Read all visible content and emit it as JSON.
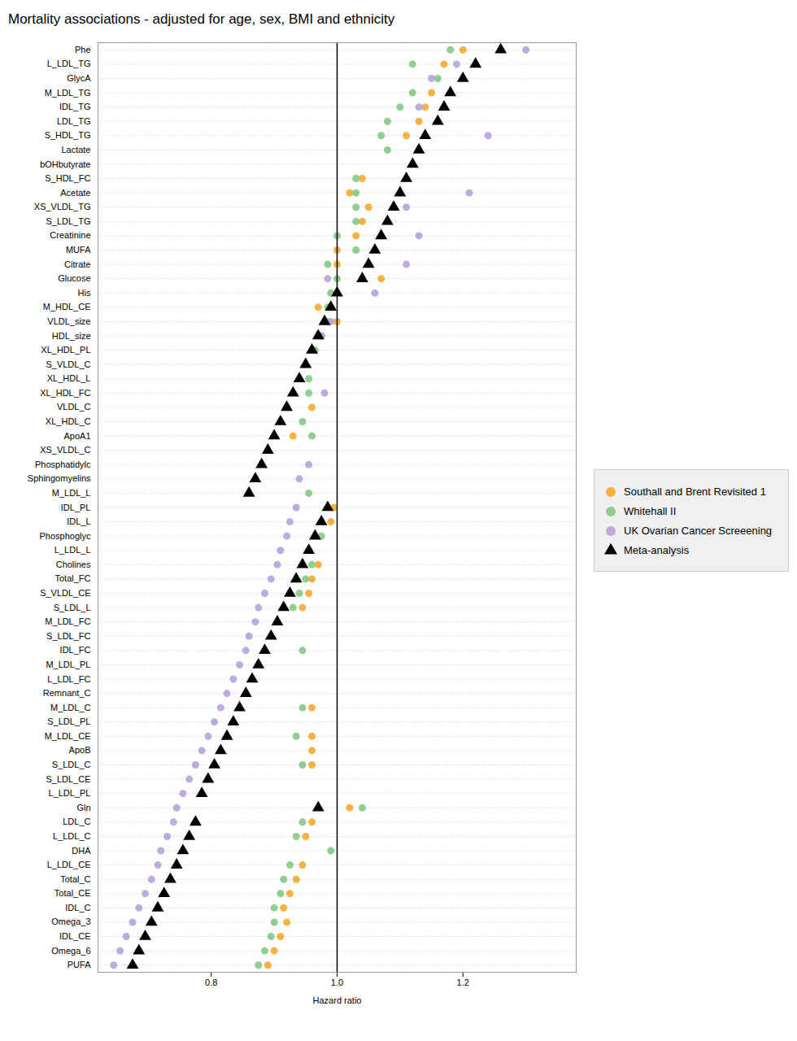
{
  "chart_data": {
    "type": "scatter",
    "orientation": "horizontal",
    "title": "Mortality associations - adjusted for age, sex, BMI and ethnicity",
    "x_label": "Hazard ratio",
    "categories": [
      "Phe",
      "L_LDL_TG",
      "GlycA",
      "M_LDL_TG",
      "IDL_TG",
      "LDL_TG",
      "S_HDL_TG",
      "Lactate",
      "bOHbutyrate",
      "S_HDL_FC",
      "Acetate",
      "XS_VLDL_TG",
      "S_LDL_TG",
      "Creatinine",
      "MUFA",
      "Citrate",
      "Glucose",
      "His",
      "M_HDL_CE",
      "VLDL_size",
      "HDL_size",
      "XL_HDL_PL",
      "S_VLDL_C",
      "XL_HDL_L",
      "XL_HDL_FC",
      "VLDL_C",
      "XL_HDL_C",
      "ApoA1",
      "XS_VLDL_C",
      "Phosphatidylc",
      "Sphingomyelins",
      "M_LDL_L",
      "IDL_PL",
      "IDL_L",
      "Phosphoglyc",
      "L_LDL_L",
      "Cholines",
      "Total_FC",
      "S_VLDL_CE",
      "S_LDL_L",
      "M_LDL_FC",
      "S_LDL_FC",
      "IDL_FC",
      "M_LDL_PL",
      "L_LDL_FC",
      "Remnant_C",
      "M_LDL_C",
      "S_LDL_PL",
      "M_LDL_CE",
      "ApoB",
      "S_LDL_C",
      "S_LDL_CE",
      "L_LDL_PL",
      "Gln",
      "LDL_C",
      "L_LDL_C",
      "DHA",
      "L_LDL_CE",
      "Total_C",
      "Total_CE",
      "IDL_C",
      "Omega_3",
      "IDL_CE",
      "Omega_6",
      "PUFA"
    ],
    "series": [
      {
        "name": "Southall and Brent Revisited 1",
        "color": "#F5A623",
        "marker": "circle",
        "values": [
          1.2,
          1.17,
          null,
          1.15,
          1.14,
          1.13,
          1.11,
          null,
          null,
          1.04,
          1.02,
          1.05,
          1.04,
          1.03,
          1.0,
          1.0,
          1.07,
          null,
          0.97,
          1.0,
          null,
          null,
          null,
          null,
          null,
          0.96,
          null,
          0.93,
          null,
          null,
          null,
          null,
          0.995,
          0.99,
          null,
          null,
          0.97,
          0.96,
          0.955,
          0.945,
          null,
          null,
          null,
          null,
          null,
          null,
          0.96,
          null,
          0.96,
          0.96,
          0.96,
          null,
          null,
          1.02,
          0.96,
          0.95,
          null,
          0.945,
          0.935,
          0.925,
          0.915,
          0.92,
          0.91,
          0.9,
          0.89
        ]
      },
      {
        "name": "Whitehall II",
        "color": "#7DC67E",
        "marker": "circle",
        "values": [
          1.18,
          1.12,
          1.16,
          1.12,
          1.1,
          1.08,
          1.07,
          1.08,
          null,
          1.03,
          1.03,
          1.03,
          1.03,
          1.0,
          1.03,
          0.985,
          1.0,
          0.99,
          0.985,
          0.985,
          0.975,
          0.965,
          null,
          0.955,
          0.955,
          null,
          0.945,
          0.96,
          null,
          null,
          null,
          0.955,
          null,
          null,
          0.975,
          0.955,
          0.96,
          0.95,
          0.94,
          0.93,
          null,
          null,
          0.945,
          null,
          null,
          null,
          0.945,
          null,
          0.935,
          null,
          0.945,
          null,
          null,
          1.04,
          0.945,
          0.935,
          0.99,
          0.925,
          0.915,
          0.91,
          0.9,
          0.9,
          0.895,
          0.885,
          0.875
        ]
      },
      {
        "name": "UK Ovarian Cancer Screeening",
        "color": "#B39DDB",
        "marker": "circle",
        "values": [
          1.3,
          1.19,
          1.15,
          null,
          1.13,
          null,
          1.24,
          null,
          null,
          null,
          1.21,
          1.11,
          null,
          1.13,
          null,
          1.11,
          0.985,
          1.06,
          null,
          0.99,
          0.975,
          null,
          null,
          null,
          0.98,
          null,
          null,
          null,
          null,
          0.955,
          0.94,
          null,
          0.935,
          0.925,
          0.92,
          0.91,
          0.905,
          0.895,
          0.885,
          0.875,
          0.87,
          0.86,
          0.855,
          0.845,
          0.835,
          0.825,
          0.815,
          0.805,
          0.795,
          0.785,
          0.775,
          0.765,
          0.755,
          0.745,
          0.74,
          0.73,
          0.72,
          0.715,
          0.705,
          0.695,
          0.685,
          0.675,
          0.665,
          0.655,
          0.645
        ]
      },
      {
        "name": "Meta-analysis",
        "color": "#000000",
        "marker": "triangle",
        "values": [
          1.26,
          1.22,
          1.2,
          1.18,
          1.17,
          1.16,
          1.14,
          1.13,
          1.12,
          1.11,
          1.1,
          1.09,
          1.08,
          1.07,
          1.06,
          1.05,
          1.04,
          1.0,
          0.99,
          0.98,
          0.97,
          0.96,
          0.95,
          0.94,
          0.93,
          0.92,
          0.91,
          0.9,
          0.89,
          0.88,
          0.87,
          0.86,
          0.985,
          0.975,
          0.965,
          0.955,
          0.945,
          0.935,
          0.925,
          0.915,
          0.905,
          0.895,
          0.885,
          0.875,
          0.865,
          0.855,
          0.845,
          0.835,
          0.825,
          0.815,
          0.805,
          0.795,
          0.785,
          0.97,
          0.775,
          0.765,
          0.755,
          0.745,
          0.735,
          0.725,
          0.715,
          0.705,
          0.695,
          0.685,
          0.675
        ]
      }
    ],
    "xlim": [
      0.62,
      1.38
    ],
    "xticks": [
      0.8,
      {
        "value": 1.0,
        "label": "1.0"
      },
      1.2
    ],
    "ref_line": 1.0,
    "grid": "y",
    "legend": "right"
  }
}
